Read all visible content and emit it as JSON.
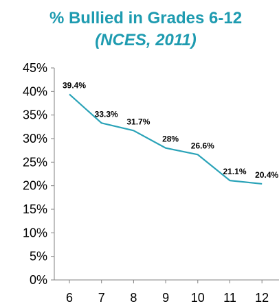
{
  "colors": {
    "title": "#1E9BB0",
    "line": "#2AA3B8",
    "axis": "#808080"
  },
  "chart_data": {
    "type": "line",
    "title": "% Bullied in Grades 6-12",
    "subtitle": "(NCES, 2011)",
    "xlabel": "",
    "ylabel": "",
    "categories": [
      "6",
      "7",
      "8",
      "9",
      "10",
      "11",
      "12"
    ],
    "values": [
      39.4,
      33.3,
      31.7,
      28,
      26.6,
      21.1,
      20.4
    ],
    "data_labels": [
      "39.4%",
      "33.3%",
      "31.7%",
      "28%",
      "26.6%",
      "21.1%",
      "20.4%"
    ],
    "ylim": [
      0,
      45
    ],
    "yticks": [
      "0%",
      "5%",
      "10%",
      "15%",
      "20%",
      "25%",
      "30%",
      "35%",
      "40%",
      "45%"
    ],
    "grid": false,
    "legend": "none"
  }
}
